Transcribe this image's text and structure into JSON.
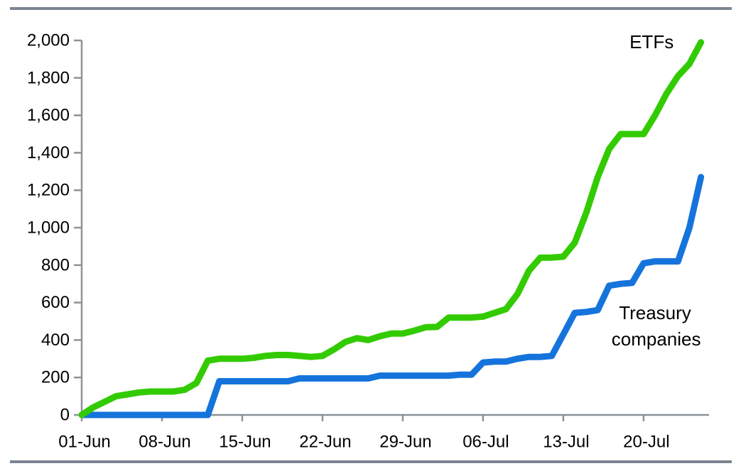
{
  "page": {
    "background": "#ffffff",
    "rule_color": "#7b8591",
    "axis_color": "#8c9298",
    "text_color": "#000000"
  },
  "chart_data": {
    "type": "line",
    "title": "",
    "xlabel": "",
    "ylabel": "",
    "grid": false,
    "legend_position": "inline-annotations",
    "ylim": [
      0,
      2000
    ],
    "y_ticks": [
      0,
      200,
      400,
      600,
      800,
      1000,
      1200,
      1400,
      1600,
      1800,
      2000
    ],
    "y_tick_labels": [
      "0",
      "200",
      "400",
      "600",
      "800",
      "1,000",
      "1,200",
      "1,400",
      "1,600",
      "1,800",
      "2,000"
    ],
    "x_tick_days": [
      0,
      7,
      14,
      21,
      28,
      35,
      42,
      49
    ],
    "x_tick_labels": [
      "01-Jun",
      "08-Jun",
      "15-Jun",
      "22-Jun",
      "29-Jun",
      "06-Jul",
      "13-Jul",
      "20-Jul"
    ],
    "x": [
      "01-Jun",
      "02-Jun",
      "03-Jun",
      "04-Jun",
      "05-Jun",
      "06-Jun",
      "07-Jun",
      "08-Jun",
      "09-Jun",
      "10-Jun",
      "11-Jun",
      "12-Jun",
      "13-Jun",
      "14-Jun",
      "15-Jun",
      "16-Jun",
      "17-Jun",
      "18-Jun",
      "19-Jun",
      "20-Jun",
      "21-Jun",
      "22-Jun",
      "23-Jun",
      "24-Jun",
      "25-Jun",
      "26-Jun",
      "27-Jun",
      "28-Jun",
      "29-Jun",
      "30-Jun",
      "01-Jul",
      "02-Jul",
      "03-Jul",
      "04-Jul",
      "05-Jul",
      "06-Jul",
      "07-Jul",
      "08-Jul",
      "09-Jul",
      "10-Jul",
      "11-Jul",
      "12-Jul",
      "13-Jul",
      "14-Jul",
      "15-Jul",
      "16-Jul",
      "17-Jul",
      "18-Jul",
      "19-Jul",
      "20-Jul",
      "21-Jul",
      "22-Jul",
      "23-Jul",
      "24-Jul",
      "25-Jul"
    ],
    "series": [
      {
        "name": "Treasury companies",
        "color": "#1574db",
        "values": [
          0,
          0,
          0,
          0,
          0,
          0,
          0,
          0,
          0,
          0,
          0,
          0,
          180,
          180,
          180,
          180,
          180,
          180,
          180,
          195,
          195,
          195,
          195,
          195,
          195,
          195,
          210,
          210,
          210,
          210,
          210,
          210,
          210,
          215,
          215,
          280,
          285,
          285,
          300,
          310,
          310,
          315,
          430,
          545,
          550,
          560,
          690,
          700,
          705,
          810,
          820,
          820,
          820,
          1000,
          1270
        ]
      },
      {
        "name": "ETFs",
        "color": "#32cb00",
        "values": [
          0,
          40,
          70,
          100,
          110,
          120,
          125,
          125,
          125,
          135,
          170,
          290,
          300,
          300,
          300,
          305,
          315,
          320,
          320,
          315,
          310,
          315,
          350,
          390,
          410,
          400,
          420,
          435,
          435,
          450,
          468,
          470,
          520,
          520,
          520,
          525,
          545,
          565,
          645,
          770,
          840,
          840,
          845,
          920,
          1080,
          1270,
          1420,
          1500,
          1500,
          1500,
          1600,
          1715,
          1810,
          1875,
          1990
        ]
      }
    ],
    "annotations": [
      {
        "text": "ETFs",
        "day": 49.7,
        "value": 1992
      },
      {
        "text": "Treasury",
        "day": 50.0,
        "value": 545
      },
      {
        "text": "companies",
        "day": 50.1,
        "value": 405
      }
    ]
  }
}
